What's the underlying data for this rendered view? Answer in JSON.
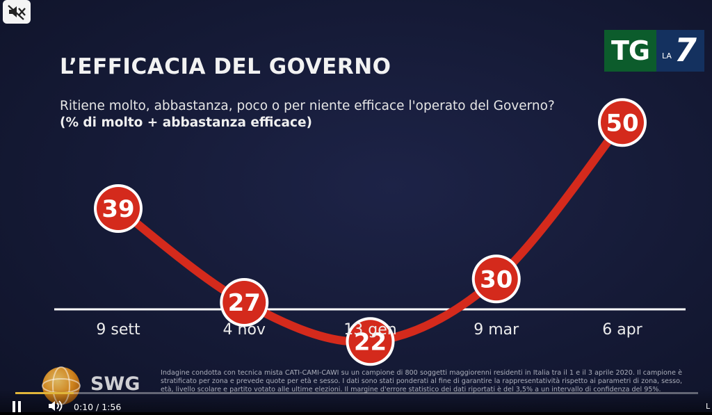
{
  "slide": {
    "title": "L’EFFICACIA DEL GOVERNO",
    "question": "Ritiene molto, abbastanza, poco o per niente efficace l'operato del Governo?",
    "unit_note": "(% di molto + abbastanza efficace)",
    "footnote": "Indagine condotta con tecnica mista CATI-CAMI-CAWI su un campione di 800 soggetti maggiorenni residenti in Italia tra il 1 e il 3 aprile 2020. Il campione è stratificato per zona e prevede quote per età e sesso. I dati sono stati ponderati al fine di garantire la rappresentatività rispetto ai parametri di zona, sesso, età, livello scolare e partito votato alle ultime elezioni. Il margine d'errore statistico dei dati riportati è del 3,5% a un intervallo di confidenza del 95%."
  },
  "chart_data": {
    "type": "line",
    "title": "L’EFFICACIA DEL GOVERNO",
    "subtitle": "(% di molto + abbastanza efficace)",
    "categories": [
      "9 sett",
      "4 nov",
      "13 gen",
      "9 mar",
      "6 apr"
    ],
    "series": [
      {
        "name": "",
        "values": [
          39,
          27,
          22,
          30,
          50
        ]
      }
    ],
    "ylim": [
      15,
      55
    ],
    "grid": false,
    "data_labels": true,
    "colors": {
      "line": "#d42a1c",
      "marker_fill": "#d42a1c",
      "marker_ring": "#ffffff",
      "baseline": "#ffffff"
    }
  },
  "branding": {
    "broadcaster_logo": {
      "tg": "TG",
      "la": "LA",
      "seven": "7"
    },
    "pollster_logo": {
      "text": "SWG",
      "icon": "globe-icon"
    }
  },
  "player": {
    "current_time": "0:10",
    "separator": " / ",
    "duration": "1:56",
    "progress": 0.086,
    "mute_icon": "muted-speaker-icon",
    "play_pause_icon": "pause-icon",
    "volume_icon": "volume-icon",
    "right_label": "L"
  },
  "colors": {
    "background": "#151a36",
    "accent_red": "#d42a1c",
    "player_progress": "#e0b53a"
  }
}
